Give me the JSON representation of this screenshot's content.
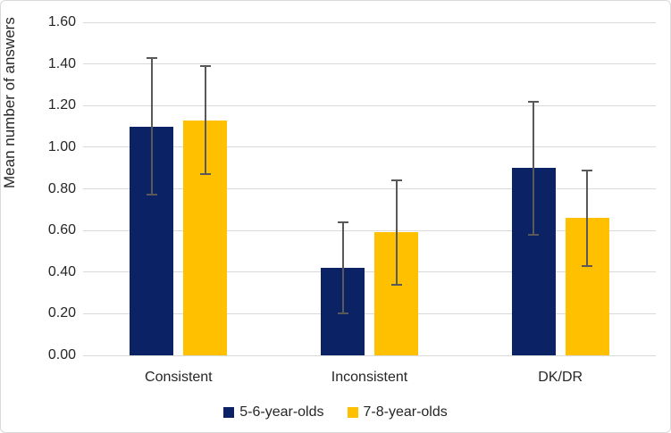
{
  "chart_data": {
    "type": "bar",
    "title": "",
    "xlabel": "",
    "ylabel": "Mean number of answers",
    "categories": [
      "Consistent",
      "Inconsistent",
      "DK/DR"
    ],
    "series": [
      {
        "name": "5-6-year-olds",
        "color": "#0B2265",
        "values": [
          1.1,
          0.42,
          0.9
        ],
        "error": [
          0.33,
          0.22,
          0.32
        ]
      },
      {
        "name": "7-8-year-olds",
        "color": "#FFC000",
        "values": [
          1.13,
          0.59,
          0.66
        ],
        "error": [
          0.26,
          0.25,
          0.23
        ]
      }
    ],
    "ylim": [
      0.0,
      1.6
    ],
    "ytick_step": 0.2,
    "ytick_labels": [
      "0.00",
      "0.20",
      "0.40",
      "0.60",
      "0.80",
      "1.00",
      "1.20",
      "1.40",
      "1.60"
    ],
    "grid": true,
    "legend_position": "bottom",
    "error_bars": true,
    "colors": {
      "gridline": "#D9D9D9",
      "axis_line": "#D9D9D9",
      "text": "#262626",
      "error_bar": "#595959",
      "chart_border": "#D9D9D9",
      "background": "#FFFFFF"
    }
  }
}
